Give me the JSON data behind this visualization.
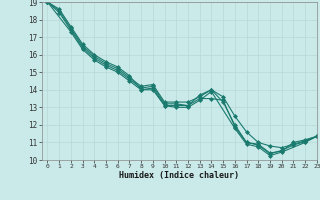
{
  "xlabel": "Humidex (Indice chaleur)",
  "ylabel": "",
  "background_color": "#caeaea",
  "line_color": "#1a7a6e",
  "grid_color": "#b8d8d8",
  "xlim": [
    -0.5,
    23
  ],
  "ylim": [
    10,
    19
  ],
  "xticks": [
    0,
    1,
    2,
    3,
    4,
    5,
    6,
    7,
    8,
    9,
    10,
    11,
    12,
    13,
    14,
    15,
    16,
    17,
    18,
    19,
    20,
    21,
    22,
    23
  ],
  "yticks": [
    10,
    11,
    12,
    13,
    14,
    15,
    16,
    17,
    18,
    19
  ],
  "lines": [
    {
      "x": [
        0,
        1,
        2,
        3,
        4,
        5,
        6,
        7,
        8,
        9,
        10,
        11,
        12,
        13,
        14,
        15,
        16,
        17,
        18,
        19,
        20,
        21,
        22,
        23
      ],
      "y": [
        19.0,
        18.6,
        17.6,
        16.6,
        16.0,
        15.6,
        15.3,
        14.8,
        14.0,
        14.0,
        13.1,
        13.1,
        13.1,
        13.5,
        13.5,
        13.4,
        11.9,
        11.0,
        10.9,
        10.4,
        10.5,
        11.0,
        11.15,
        11.35
      ]
    },
    {
      "x": [
        0,
        1,
        2,
        3,
        4,
        5,
        6,
        7,
        8,
        9,
        10,
        11,
        12,
        13,
        14,
        15,
        16,
        17,
        18,
        19,
        20,
        21,
        22,
        23
      ],
      "y": [
        19.0,
        18.5,
        17.5,
        16.5,
        15.9,
        15.5,
        15.2,
        14.7,
        14.2,
        14.3,
        13.3,
        13.3,
        13.3,
        13.6,
        14.0,
        13.6,
        12.5,
        11.6,
        11.0,
        10.8,
        10.7,
        10.9,
        11.1,
        11.35
      ]
    },
    {
      "x": [
        0,
        1,
        2,
        3,
        4,
        5,
        6,
        7,
        8,
        9,
        10,
        11,
        12,
        13,
        14,
        15,
        16,
        17,
        18,
        19,
        20,
        21,
        22,
        23
      ],
      "y": [
        19.0,
        18.4,
        17.4,
        16.4,
        15.8,
        15.4,
        15.1,
        14.6,
        14.1,
        14.2,
        13.2,
        13.2,
        13.1,
        13.7,
        14.0,
        13.3,
        12.0,
        11.0,
        10.85,
        10.35,
        10.55,
        10.85,
        11.05,
        11.35
      ]
    },
    {
      "x": [
        0,
        2,
        3,
        4,
        5,
        6,
        7,
        8,
        9,
        10,
        11,
        12,
        13,
        14,
        16,
        17,
        18,
        19,
        20,
        22,
        23
      ],
      "y": [
        19.0,
        17.3,
        16.3,
        15.7,
        15.3,
        15.0,
        14.5,
        14.0,
        14.1,
        13.1,
        13.0,
        13.0,
        13.4,
        13.9,
        11.8,
        10.9,
        10.75,
        10.25,
        10.45,
        11.0,
        11.35
      ]
    }
  ],
  "marker": "D",
  "markersize": 2.0,
  "linewidth": 0.8
}
